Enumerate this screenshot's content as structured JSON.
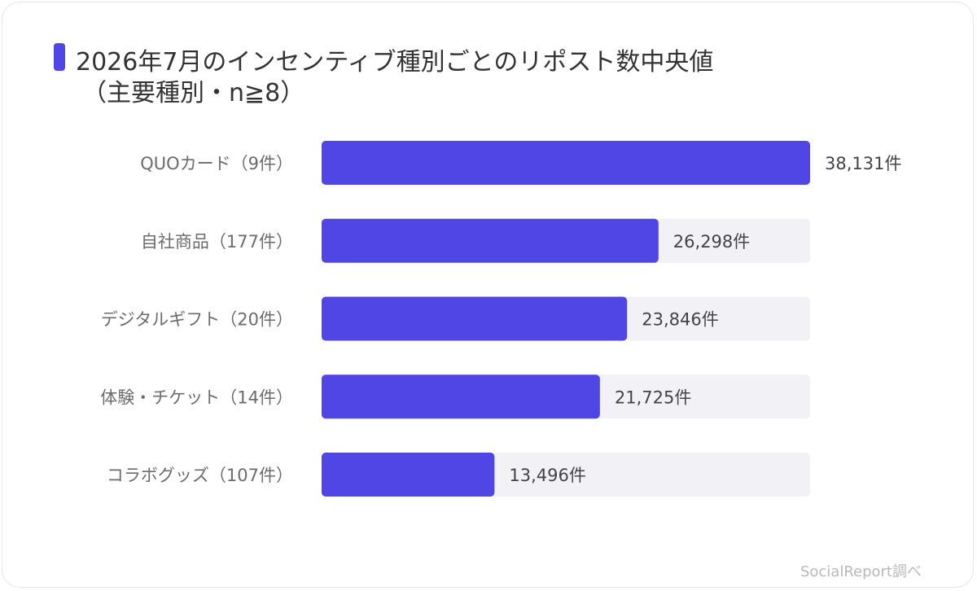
{
  "chart_data": {
    "type": "bar",
    "orientation": "horizontal",
    "title": "2026年7月のインセンティブ種別ごとのリポスト数中央値",
    "subtitle": "（主要種別・n≧8）",
    "categories": [
      "QUOカード（9件）",
      "自社商品（177件）",
      "デジタルギフト（20件）",
      "体験・チケット（14件）",
      "コラボグッズ（107件）"
    ],
    "values": [
      38131,
      26298,
      23846,
      21725,
      13496
    ],
    "value_labels": [
      "38,131件",
      "26,298件",
      "23,846件",
      "21,725件",
      "13,496件"
    ],
    "xlim": [
      0,
      38131
    ],
    "grid": false,
    "legend": "none",
    "colors": {
      "bar": "#4f46e5",
      "track": "#f1f1f6",
      "label": "#6b6b70",
      "title": "#333333",
      "accent": "#4f46e5"
    }
  },
  "source_note": "SocialReport調べ"
}
